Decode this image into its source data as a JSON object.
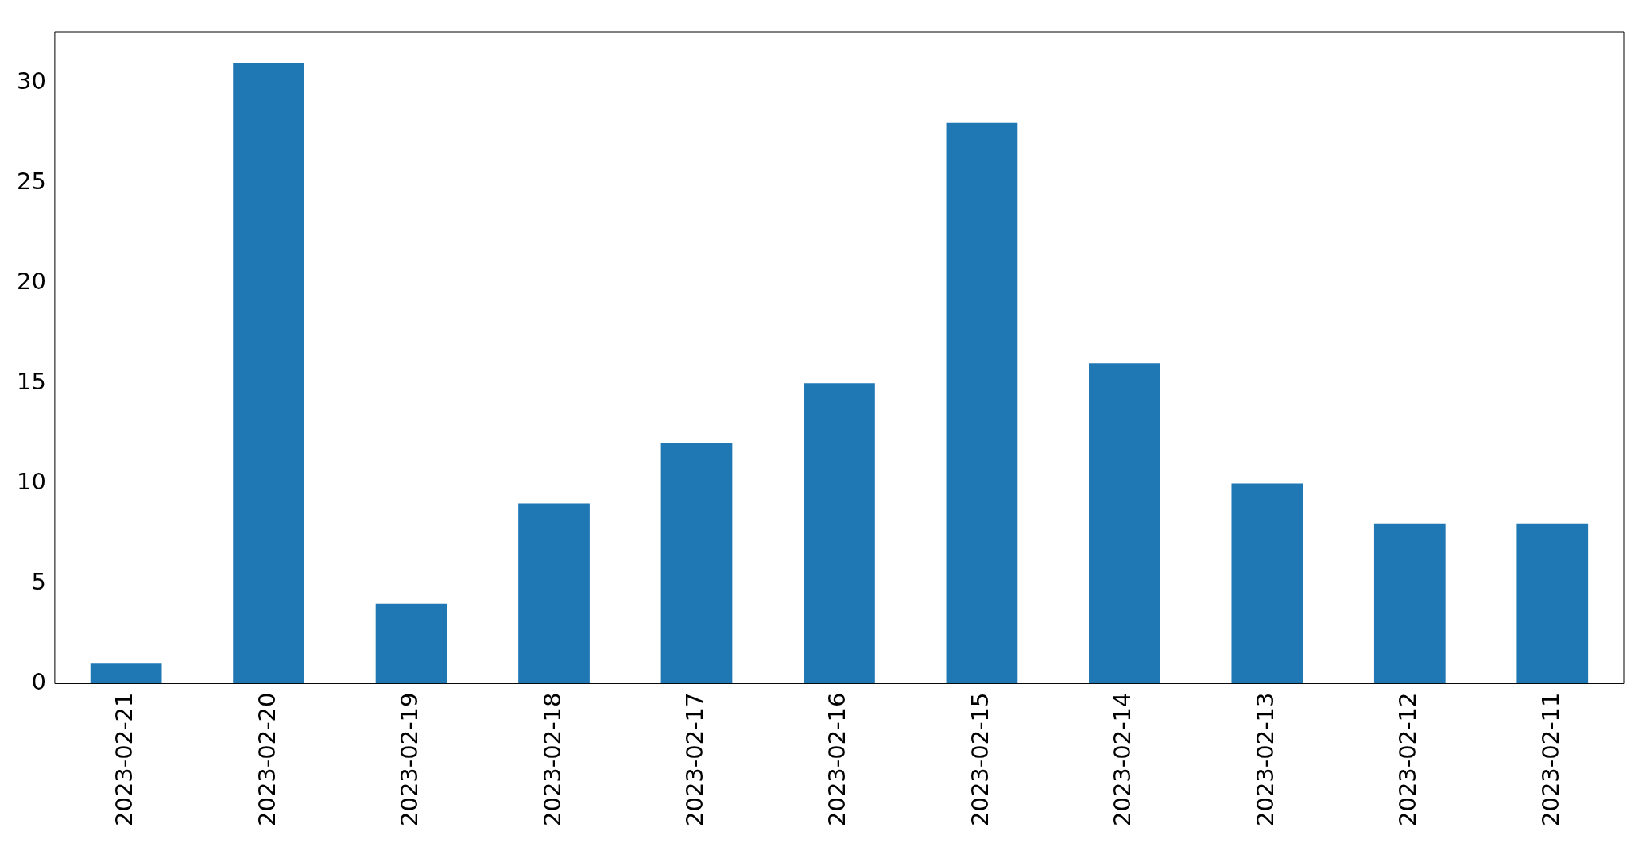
{
  "chart_data": {
    "type": "bar",
    "categories": [
      "2023-02-21",
      "2023-02-20",
      "2023-02-19",
      "2023-02-18",
      "2023-02-17",
      "2023-02-16",
      "2023-02-15",
      "2023-02-14",
      "2023-02-13",
      "2023-02-12",
      "2023-02-11"
    ],
    "values": [
      1,
      31,
      4,
      9,
      12,
      15,
      28,
      16,
      10,
      8,
      8
    ],
    "color": "#1f77b4",
    "ylim": [
      0,
      32.55
    ],
    "yticks": [
      0,
      5,
      10,
      15,
      20,
      25,
      30
    ]
  }
}
